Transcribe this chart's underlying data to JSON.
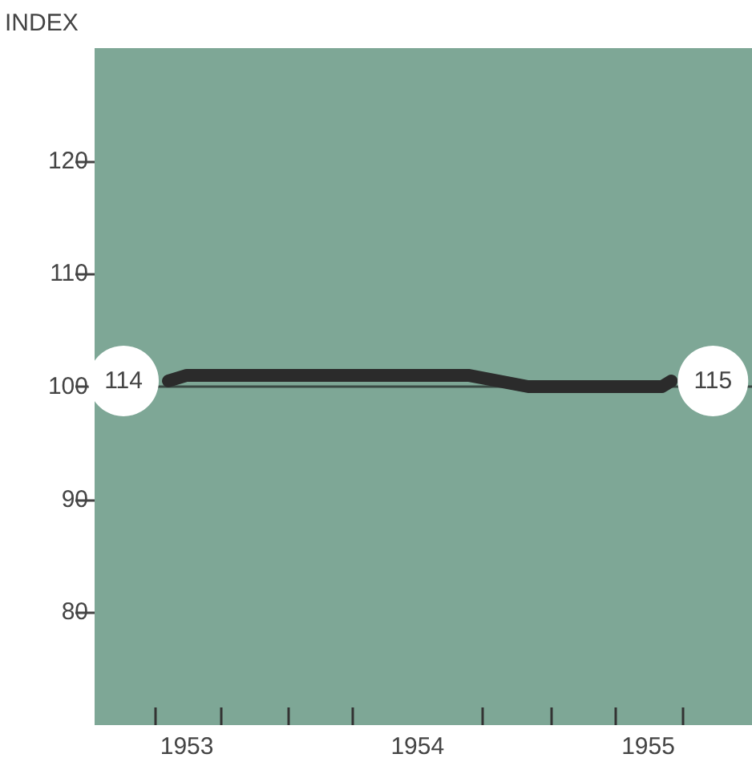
{
  "chart_data": {
    "type": "line",
    "ylabel": "INDEX",
    "x": [
      1952.92,
      1953.0,
      1954.22,
      1954.48,
      1955.06,
      1955.1
    ],
    "series": [
      {
        "color": "#2b2b2b",
        "values": [
          100.5,
          101,
          101,
          100,
          100,
          100.5
        ]
      }
    ],
    "xlim": [
      1952.6,
      1955.45
    ],
    "xticks": [
      {
        "value": 1952.86,
        "label": null
      },
      {
        "value": 1953,
        "label": "1953"
      },
      {
        "value": 1953.15,
        "label": null
      },
      {
        "value": 1953.44,
        "label": null
      },
      {
        "value": 1953.72,
        "label": null
      },
      {
        "value": 1954,
        "label": "1954"
      },
      {
        "value": 1954.28,
        "label": null
      },
      {
        "value": 1954.58,
        "label": null
      },
      {
        "value": 1954.86,
        "label": null
      },
      {
        "value": 1955,
        "label": "1955"
      },
      {
        "value": 1955.15,
        "label": null
      }
    ],
    "ylim": [
      70,
      130
    ],
    "yticks": [
      80,
      90,
      100,
      110,
      120
    ],
    "ref_lines": [
      {
        "axis": "y",
        "value": 100,
        "color": "#3a4a44"
      }
    ],
    "annotations": [
      {
        "text": "114",
        "x": 1952.92,
        "y": 100.5
      },
      {
        "text": "115",
        "x": 1955.1,
        "y": 100.5
      }
    ],
    "marker": "none",
    "line_style": "solid"
  }
}
